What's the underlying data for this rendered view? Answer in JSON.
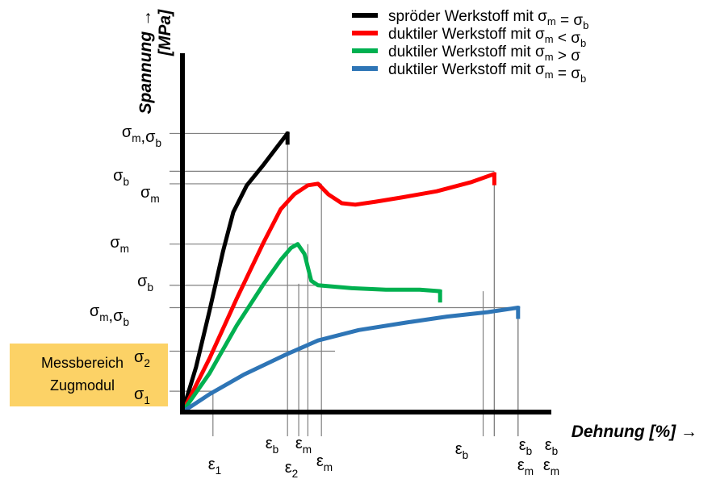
{
  "chart_data": {
    "type": "line",
    "title": "",
    "xlabel": "Dehnung [%]",
    "ylabel_line1": "Spannung",
    "ylabel_line2": "[MPa]",
    "arrow": "→",
    "xlim": [
      0,
      100
    ],
    "ylim": [
      0,
      100
    ],
    "grid": false,
    "legend_position": "top-right",
    "series": [
      {
        "name": "spröder Werkstoff mit σm = σb",
        "color": "#000000",
        "points": [
          [
            0,
            0
          ],
          [
            4,
            15
          ],
          [
            8,
            34
          ],
          [
            12,
            54
          ],
          [
            15,
            67
          ],
          [
            19,
            76
          ],
          [
            24,
            83
          ],
          [
            28,
            89
          ],
          [
            31,
            93.4
          ]
        ]
      },
      {
        "name": "duktiler Werkstoff mit σm < σb",
        "color": "#ff0000",
        "points": [
          [
            0,
            0
          ],
          [
            8,
            18
          ],
          [
            16,
            38
          ],
          [
            24,
            57
          ],
          [
            29,
            68
          ],
          [
            33,
            73
          ],
          [
            37,
            76
          ],
          [
            40,
            76.5
          ],
          [
            43,
            73
          ],
          [
            47,
            70
          ],
          [
            51,
            69.5
          ],
          [
            57,
            70.5
          ],
          [
            65,
            72
          ],
          [
            75,
            74
          ],
          [
            85,
            77
          ],
          [
            92,
            79.8
          ]
        ]
      },
      {
        "name": "duktiler Werkstoff mit σm > σ",
        "color": "#00b050",
        "points": [
          [
            0,
            0
          ],
          [
            8,
            13
          ],
          [
            16,
            29
          ],
          [
            24,
            43
          ],
          [
            29,
            51
          ],
          [
            32,
            55
          ],
          [
            34,
            56.3
          ],
          [
            36,
            53
          ],
          [
            38,
            44
          ],
          [
            40,
            42.5
          ],
          [
            50,
            41.5
          ],
          [
            60,
            41
          ],
          [
            70,
            41
          ],
          [
            76,
            40.5
          ]
        ]
      },
      {
        "name": "duktiler Werkstoff mit σm = σb",
        "color": "#2e75b6",
        "points": [
          [
            0,
            0
          ],
          [
            8,
            6
          ],
          [
            18,
            12.5
          ],
          [
            30,
            19
          ],
          [
            40,
            24
          ],
          [
            52,
            27.5
          ],
          [
            66,
            30
          ],
          [
            78,
            32
          ],
          [
            90,
            33.5
          ],
          [
            99,
            35
          ]
        ]
      }
    ],
    "y_markers": [
      {
        "label": "σm,σb",
        "value": 93.4
      },
      {
        "label": "σb",
        "value": 80.7
      },
      {
        "label": "σm",
        "value": 76.5
      },
      {
        "label": "σm",
        "value": 56.3
      },
      {
        "label": "σb",
        "value": 42.5
      },
      {
        "label": "σm,σb",
        "value": 35
      },
      {
        "label": "σ2",
        "value": 20.4
      },
      {
        "label": "σ1",
        "value": 7
      }
    ],
    "x_markers": [
      {
        "label": "ε1",
        "value": 9
      },
      {
        "label": "εb",
        "value": 31
      },
      {
        "label": "ε2",
        "value": 34.3
      },
      {
        "label": "εm",
        "value": 37
      },
      {
        "label": "εm",
        "value": 41
      },
      {
        "label": "εb",
        "value": 88.7
      },
      {
        "label": "εb",
        "value": 109.5
      },
      {
        "label": "εm",
        "value": 109.5
      },
      {
        "label": "εb",
        "value": 118.8
      },
      {
        "label": "εm",
        "value": 118.8
      }
    ],
    "annotation": {
      "line1": "Messbereich",
      "line2": "Zugmodul"
    }
  }
}
